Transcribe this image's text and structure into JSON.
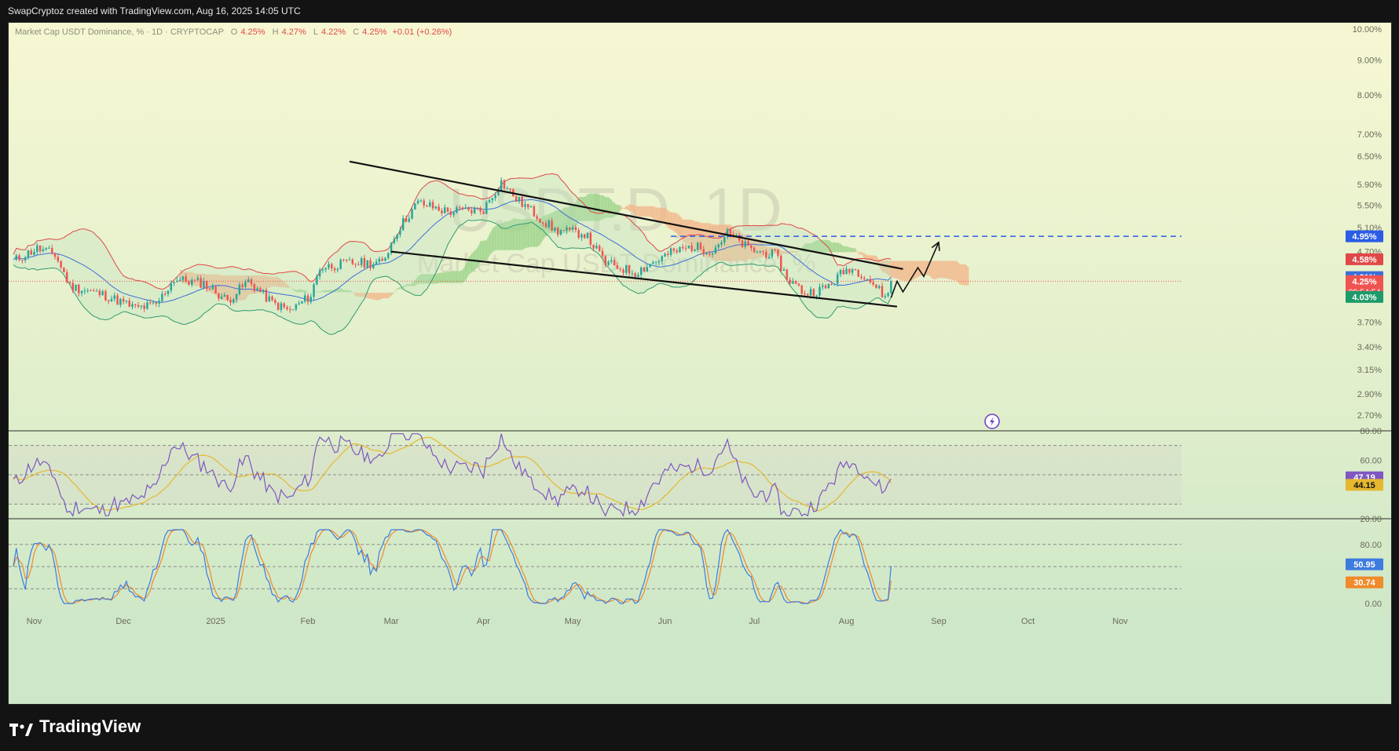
{
  "header": {
    "attribution": "SwapCryptoz created with TradingView.com, Aug 16, 2025 14:05 UTC"
  },
  "legend": {
    "symbol_text": "Market Cap USDT Dominance, % · 1D · CRYPTOCAP",
    "o_label": "O",
    "o_value": "4.25%",
    "h_label": "H",
    "h_value": "4.27%",
    "l_label": "L",
    "l_value": "4.22%",
    "c_label": "C",
    "c_value": "4.25%",
    "change": "+0.01 (+0.26%)"
  },
  "watermark": {
    "symbol": "USDT.D, 1D",
    "description": "Market Cap USDT Dominance, %"
  },
  "footer": {
    "logo_text": "TradingView"
  },
  "colors": {
    "background": "#f3f6d4",
    "up": "#26a69a",
    "down": "#ef5350",
    "bb_upper": "#e04848",
    "bb_basis": "#3d6fd8",
    "bb_lower": "#2f9b6e",
    "cloud_bear": "#f3b58a",
    "cloud_bull": "#9bd38a",
    "rsi": "#7e57c2",
    "rsi_ma": "#e5b830",
    "stoch_k": "#3d7be0",
    "stoch_d": "#f08a2a",
    "level_blue": "#2a5ce6"
  },
  "chart_data": [
    {
      "type": "candlestick",
      "title": "Market Cap USDT Dominance, %",
      "interval": "1D",
      "exchange": "CRYPTOCAP",
      "scale": "log",
      "ylim": [
        2.6,
        10.0
      ],
      "y_ticks": [
        "10.00%",
        "9.00%",
        "8.00%",
        "7.00%",
        "6.50%",
        "5.90%",
        "5.50%",
        "5.10%",
        "4.70%",
        "3.70%",
        "3.40%",
        "3.15%",
        "2.90%",
        "2.70%"
      ],
      "y_tick_values": [
        10.0,
        9.0,
        8.0,
        7.0,
        6.5,
        5.9,
        5.5,
        5.1,
        4.7,
        3.7,
        3.4,
        3.15,
        2.9,
        2.7
      ],
      "x_ticks": [
        "Nov",
        "Dec",
        "2025",
        "Feb",
        "Mar",
        "Apr",
        "May",
        "Jun",
        "Jul",
        "Aug",
        "Sep",
        "Oct",
        "Nov"
      ],
      "x_tick_dates": [
        "2024-11-01",
        "2024-12-01",
        "2025-01-01",
        "2025-02-01",
        "2025-03-01",
        "2025-04-01",
        "2025-05-01",
        "2025-06-01",
        "2025-07-01",
        "2025-08-01",
        "2025-09-01",
        "2025-10-01",
        "2025-11-01"
      ],
      "x_range": [
        "2024-10-25",
        "2025-11-20"
      ],
      "close_series": {
        "start_date": "2024-10-25",
        "end_date": "2025-08-16",
        "keypoints": [
          [
            "2024-10-25",
            4.55
          ],
          [
            "2024-11-02",
            4.75
          ],
          [
            "2024-11-08",
            4.65
          ],
          [
            "2024-11-13",
            4.18
          ],
          [
            "2024-11-25",
            4.05
          ],
          [
            "2024-12-05",
            3.88
          ],
          [
            "2024-12-12",
            3.92
          ],
          [
            "2024-12-18",
            4.28
          ],
          [
            "2024-12-28",
            4.22
          ],
          [
            "2025-01-05",
            3.98
          ],
          [
            "2025-01-12",
            4.25
          ],
          [
            "2025-01-20",
            3.95
          ],
          [
            "2025-01-26",
            3.84
          ],
          [
            "2025-02-02",
            4.05
          ],
          [
            "2025-02-05",
            4.45
          ],
          [
            "2025-02-15",
            4.52
          ],
          [
            "2025-02-26",
            4.52
          ],
          [
            "2025-03-03",
            5.05
          ],
          [
            "2025-03-10",
            5.55
          ],
          [
            "2025-03-20",
            5.38
          ],
          [
            "2025-04-01",
            5.42
          ],
          [
            "2025-04-07",
            5.95
          ],
          [
            "2025-04-12",
            5.62
          ],
          [
            "2025-04-25",
            5.05
          ],
          [
            "2025-05-05",
            5.0
          ],
          [
            "2025-05-12",
            4.52
          ],
          [
            "2025-05-22",
            4.38
          ],
          [
            "2025-06-03",
            4.68
          ],
          [
            "2025-06-10",
            4.78
          ],
          [
            "2025-06-17",
            4.72
          ],
          [
            "2025-06-22",
            5.0
          ],
          [
            "2025-06-30",
            4.72
          ],
          [
            "2025-07-08",
            4.65
          ],
          [
            "2025-07-12",
            4.3
          ],
          [
            "2025-07-18",
            4.08
          ],
          [
            "2025-07-25",
            4.15
          ],
          [
            "2025-07-30",
            4.35
          ],
          [
            "2025-08-02",
            4.45
          ],
          [
            "2025-08-07",
            4.35
          ],
          [
            "2025-08-12",
            4.12
          ],
          [
            "2025-08-14",
            4.02
          ],
          [
            "2025-08-16",
            4.25
          ]
        ]
      },
      "bollinger": {
        "upper_last": 4.58,
        "basis_last": 4.31,
        "lower_last": 4.03
      },
      "price_labels": [
        {
          "text": "4.95%",
          "value": 4.95,
          "color": "#2a5ce6"
        },
        {
          "text": "4.58%",
          "value": 4.58,
          "color": "#e04848"
        },
        {
          "text": "4.31%",
          "value": 4.31,
          "color": "#3d6fd8"
        },
        {
          "text": "4.25%",
          "value": 4.25,
          "color": "#ef5350",
          "countdown": "09:54:54"
        },
        {
          "text": "4.03%",
          "value": 4.03,
          "color": "#1e9a6a"
        }
      ],
      "horizontal_level": {
        "value": 4.95,
        "from_date": "2025-06-03"
      },
      "trendlines": [
        {
          "name": "upper",
          "from": [
            "2025-02-15",
            6.38
          ],
          "to": [
            "2025-08-20",
            4.43
          ]
        },
        {
          "name": "lower",
          "from": [
            "2025-03-01",
            4.7
          ],
          "to": [
            "2025-08-18",
            3.9
          ]
        }
      ],
      "projection_path": [
        [
          "2025-08-16",
          4.02
        ],
        [
          "2025-08-18",
          4.25
        ],
        [
          "2025-08-20",
          4.1
        ],
        [
          "2025-08-25",
          4.45
        ],
        [
          "2025-08-27",
          4.32
        ],
        [
          "2025-09-01",
          4.85
        ]
      ]
    },
    {
      "type": "line",
      "title": "RSI",
      "ylim": [
        20,
        80
      ],
      "y_ticks": [
        "80.00",
        "60.00",
        "20.00"
      ],
      "y_tick_values": [
        80,
        60,
        20
      ],
      "bands": [
        70,
        50,
        30
      ],
      "series": [
        {
          "key": "rsi",
          "last": 47.19,
          "label": "47.19"
        },
        {
          "key": "rsi_ma",
          "last": 44.15,
          "label": "44.15"
        }
      ]
    },
    {
      "type": "line",
      "title": "Stochastic",
      "ylim": [
        0,
        100
      ],
      "y_ticks": [
        "80.00",
        "0.00"
      ],
      "y_tick_values": [
        80,
        0
      ],
      "bands": [
        80,
        50,
        20
      ],
      "series": [
        {
          "key": "stoch_k",
          "last": 50.95,
          "label": "50.95"
        },
        {
          "key": "stoch_d",
          "last": 30.74,
          "label": "30.74"
        }
      ]
    }
  ]
}
